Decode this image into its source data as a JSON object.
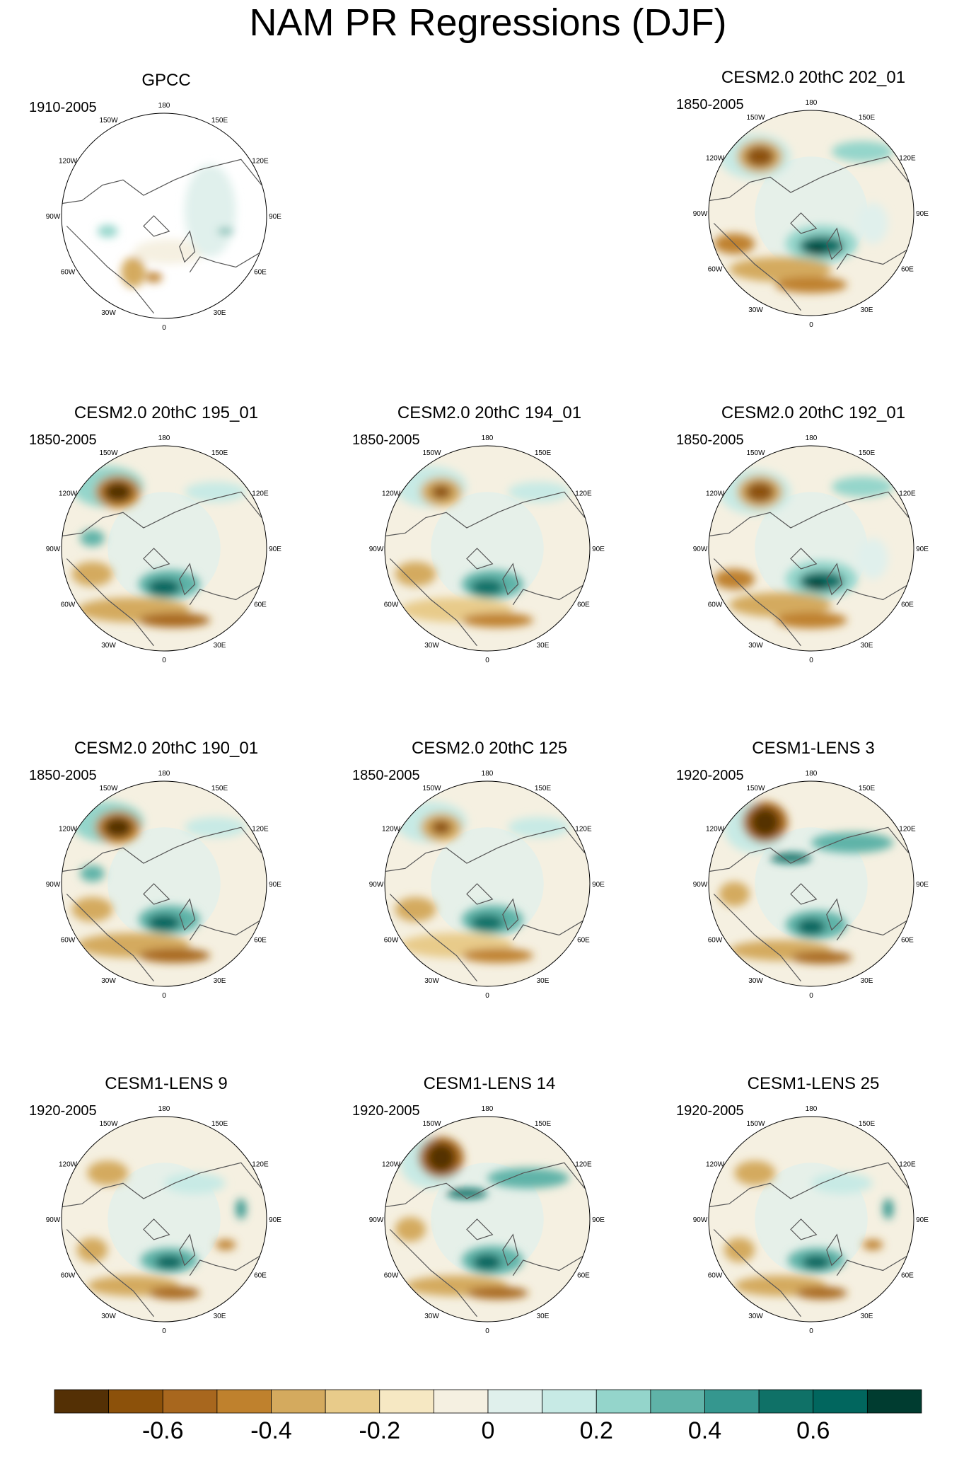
{
  "title": "NAM PR Regressions (DJF)",
  "lon_labels": [
    "180",
    "150E",
    "120E",
    "90E",
    "60E",
    "30E",
    "0",
    "30W",
    "60W",
    "90W",
    "120W",
    "150W"
  ],
  "panels": [
    {
      "title": "GPCC",
      "period": "1910-2005"
    },
    {
      "title": "CESM2.0 20thC 202_01",
      "period": "1850-2005"
    },
    {
      "title": "CESM2.0 20thC 195_01",
      "period": "1850-2005"
    },
    {
      "title": "CESM2.0 20thC 194_01",
      "period": "1850-2005"
    },
    {
      "title": "CESM2.0 20thC 192_01",
      "period": "1850-2005"
    },
    {
      "title": "CESM2.0 20thC 190_01",
      "period": "1850-2005"
    },
    {
      "title": "CESM2.0 20thC 125",
      "period": "1850-2005"
    },
    {
      "title": "CESM1-LENS 3",
      "period": "1920-2005"
    },
    {
      "title": "CESM1-LENS 9",
      "period": "1920-2005"
    },
    {
      "title": "CESM1-LENS 14",
      "period": "1920-2005"
    },
    {
      "title": "CESM1-LENS 25",
      "period": "1920-2005"
    }
  ],
  "colorbar": {
    "colors": [
      "#543005",
      "#8c510a",
      "#a8671e",
      "#bf812d",
      "#d4aa5e",
      "#e8cb8a",
      "#f6e8c3",
      "#f5f0e1",
      "#e0f0ec",
      "#c7eae5",
      "#94d5cb",
      "#5fb3a8",
      "#35978f",
      "#0f7167",
      "#01665e",
      "#003c30"
    ],
    "tick_labels": [
      "-0.6",
      "-0.4",
      "-0.2",
      "0",
      "0.2",
      "0.4",
      "0.6"
    ]
  }
}
